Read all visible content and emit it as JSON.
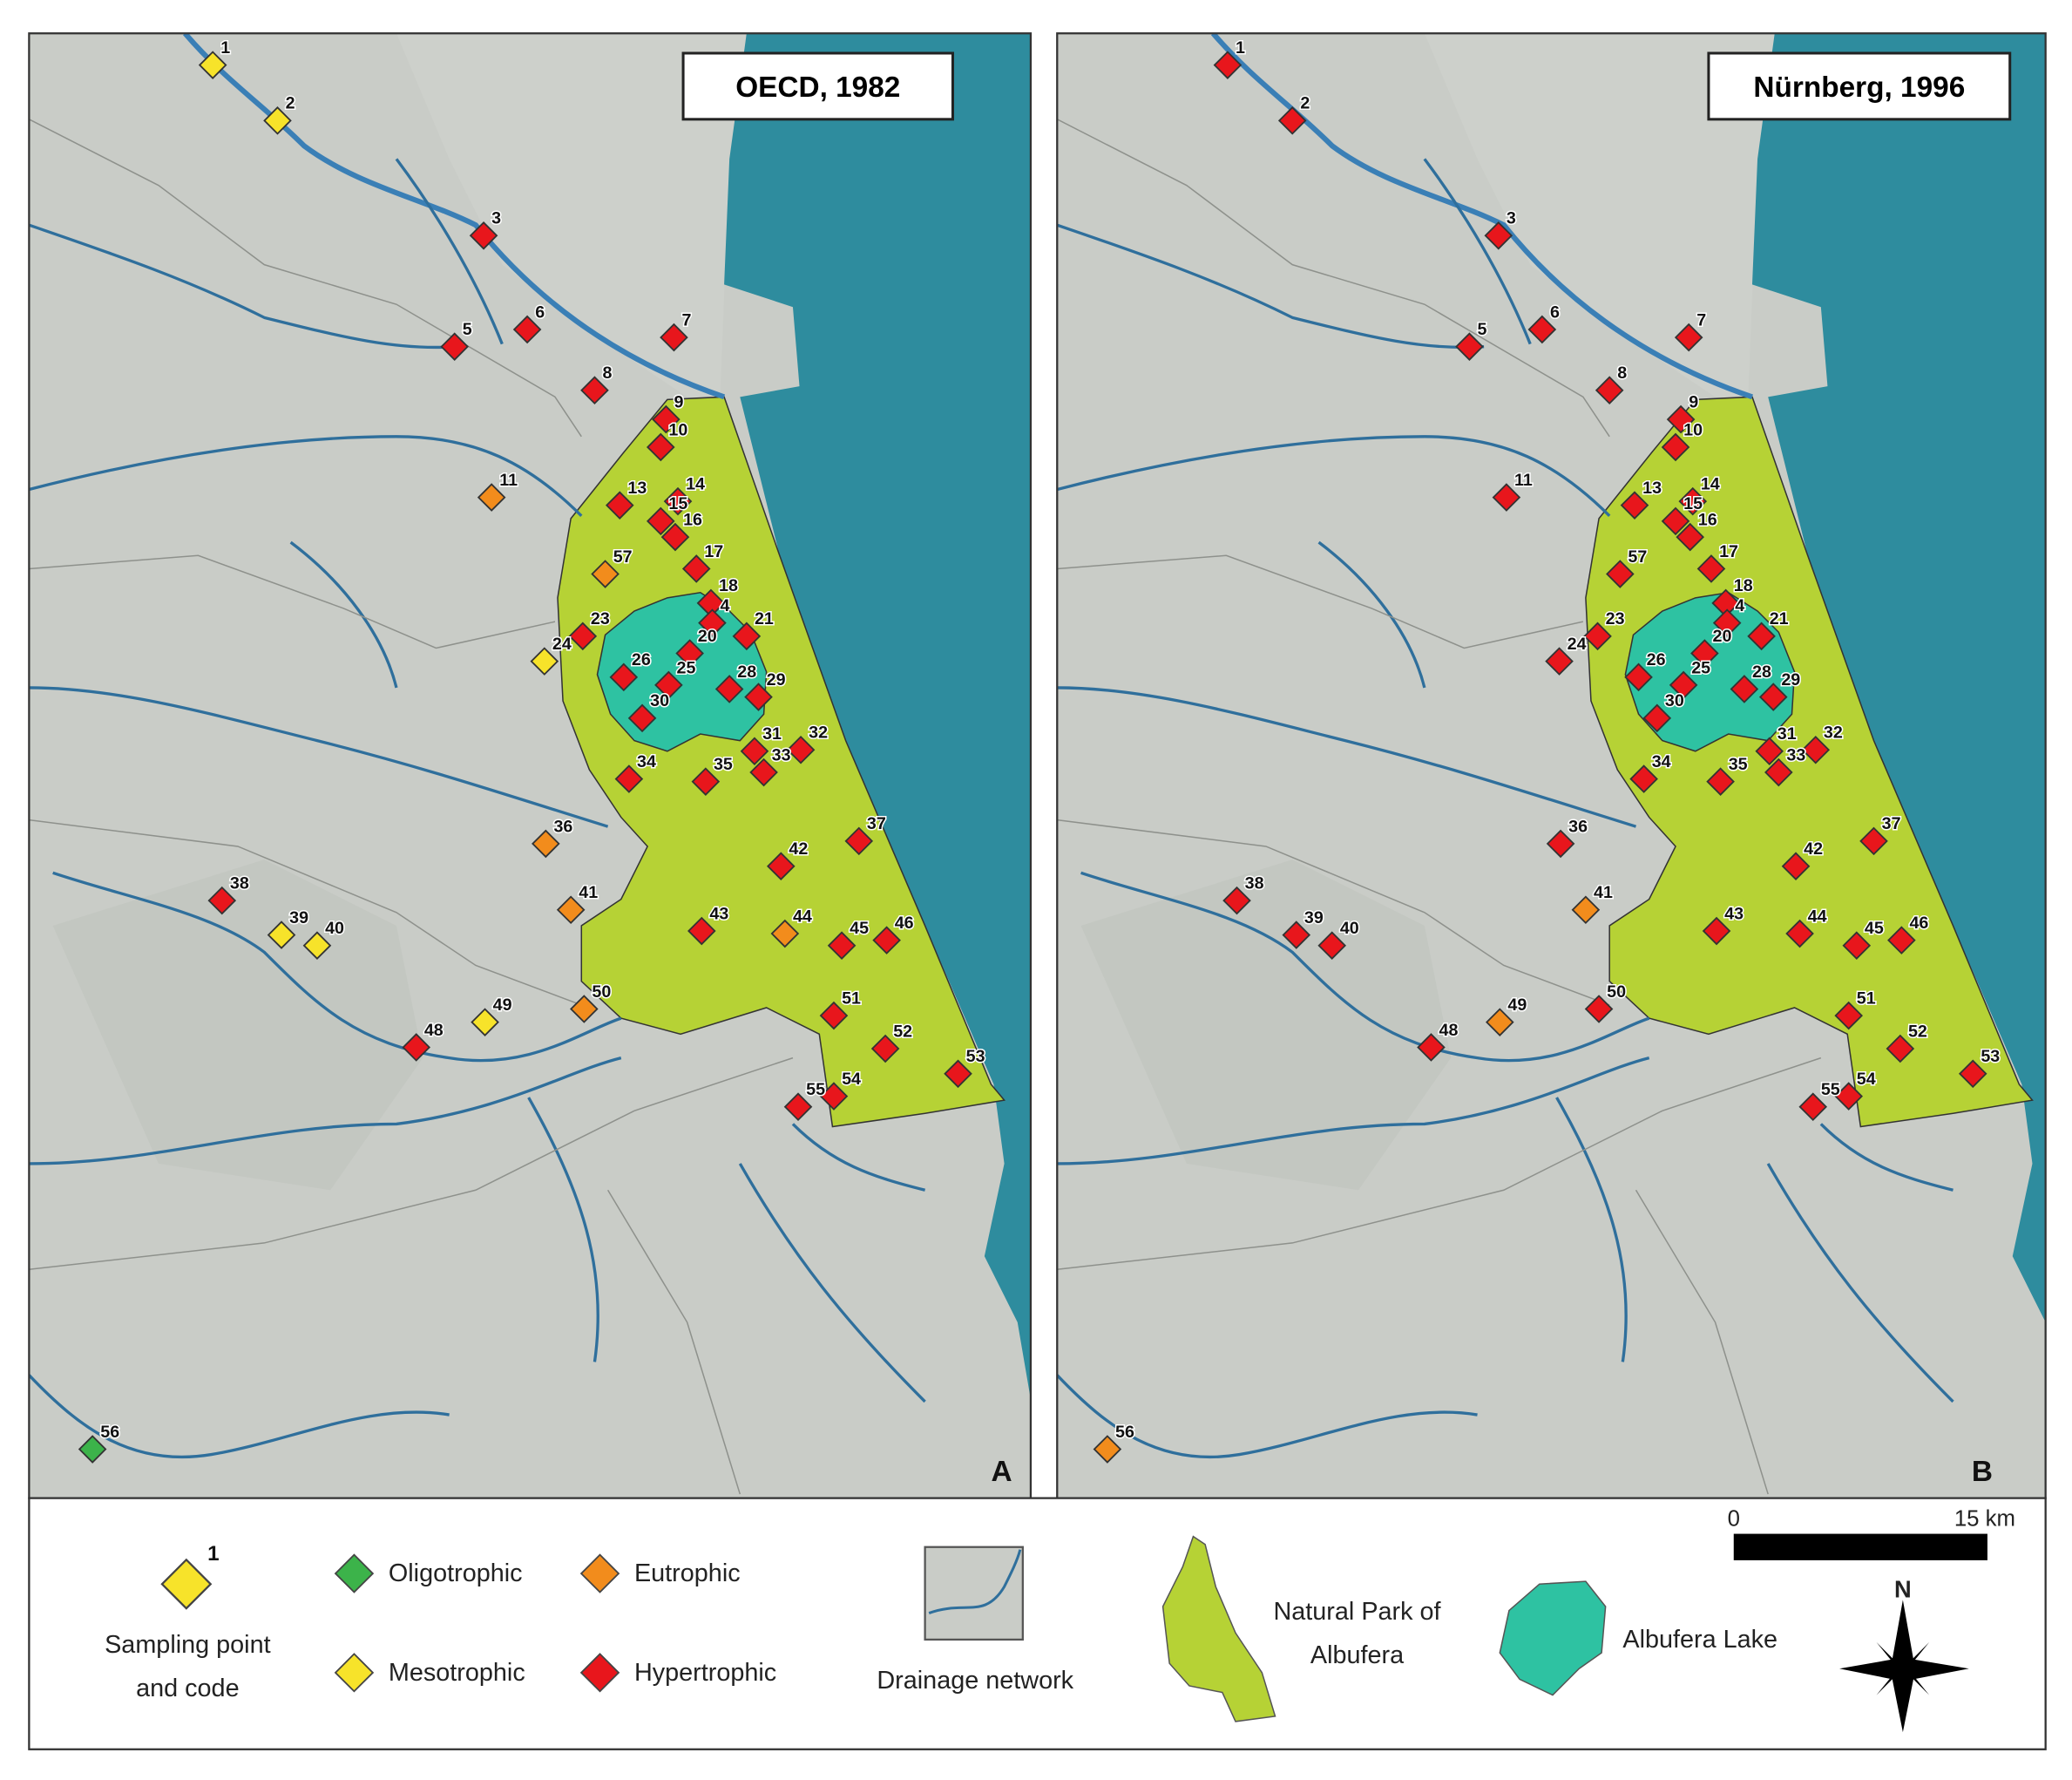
{
  "panels": [
    {
      "title": "OECD, 1982",
      "letter": "A",
      "status": [
        "Mesotrophic",
        "Mesotrophic",
        "Hypertrophic",
        "Hypertrophic",
        "Hypertrophic",
        "Hypertrophic",
        "Hypertrophic",
        "Hypertrophic",
        "Hypertrophic",
        "Eutrophic",
        "Hypertrophic",
        "Hypertrophic",
        "Hypertrophic",
        "Hypertrophic",
        "Hypertrophic",
        "Hypertrophic",
        "Hypertrophic",
        "Hypertrophic",
        "Hypertrophic",
        "Hypertrophic",
        "Mesotrophic",
        "Hypertrophic",
        "Hypertrophic",
        "Hypertrophic",
        "Hypertrophic",
        "Hypertrophic",
        "Hypertrophic",
        "Hypertrophic",
        "Hypertrophic",
        "Hypertrophic",
        "Hypertrophic",
        "Eutrophic",
        "Hypertrophic",
        "Hypertrophic",
        "Mesotrophic",
        "Mesotrophic",
        "Eutrophic",
        "Hypertrophic",
        "Hypertrophic",
        "Eutrophic",
        "Hypertrophic",
        "Hypertrophic",
        "Hypertrophic",
        "Mesotrophic",
        "Eutrophic",
        "Hypertrophic",
        "Hypertrophic",
        "Hypertrophic",
        "Hypertrophic",
        "Hypertrophic",
        "Oligotrophic",
        "Eutrophic"
      ]
    },
    {
      "title": "Nürnberg, 1996",
      "letter": "B",
      "status": [
        "Hypertrophic",
        "Hypertrophic",
        "Hypertrophic",
        "Hypertrophic",
        "Hypertrophic",
        "Hypertrophic",
        "Hypertrophic",
        "Hypertrophic",
        "Hypertrophic",
        "Hypertrophic",
        "Hypertrophic",
        "Hypertrophic",
        "Hypertrophic",
        "Hypertrophic",
        "Hypertrophic",
        "Hypertrophic",
        "Hypertrophic",
        "Hypertrophic",
        "Hypertrophic",
        "Hypertrophic",
        "Hypertrophic",
        "Hypertrophic",
        "Hypertrophic",
        "Hypertrophic",
        "Hypertrophic",
        "Hypertrophic",
        "Hypertrophic",
        "Hypertrophic",
        "Hypertrophic",
        "Hypertrophic",
        "Hypertrophic",
        "Hypertrophic",
        "Hypertrophic",
        "Hypertrophic",
        "Hypertrophic",
        "Hypertrophic",
        "Eutrophic",
        "Hypertrophic",
        "Hypertrophic",
        "Hypertrophic",
        "Hypertrophic",
        "Hypertrophic",
        "Hypertrophic",
        "Eutrophic",
        "Hypertrophic",
        "Hypertrophic",
        "Hypertrophic",
        "Hypertrophic",
        "Hypertrophic",
        "Hypertrophic",
        "Eutrophic",
        "Hypertrophic"
      ]
    }
  ],
  "points": [
    "1",
    "2",
    "3",
    "5",
    "6",
    "7",
    "8",
    "9",
    "10",
    "11",
    "13",
    "14",
    "15",
    "16",
    "17",
    "18",
    "4",
    "20",
    "21",
    "23",
    "24",
    "25",
    "26",
    "28",
    "29",
    "30",
    "31",
    "32",
    "33",
    "34",
    "35",
    "36",
    "37",
    "38",
    "39",
    "40",
    "41",
    "42",
    "43",
    "44",
    "45",
    "46",
    "48",
    "49",
    "50",
    "51",
    "52",
    "53",
    "54",
    "55",
    "56",
    "57"
  ],
  "legend": {
    "sampling_code": "1",
    "sampling_label": [
      "Sampling point",
      "and code"
    ],
    "classes": [
      {
        "name": "Oligotrophic",
        "color": "#3cb34a"
      },
      {
        "name": "Eutrophic",
        "color": "#f28c1c"
      },
      {
        "name": "Mesotrophic",
        "color": "#f7e32a"
      },
      {
        "name": "Hypertrophic",
        "color": "#e8161c"
      }
    ],
    "drainage": "Drainage network",
    "park": [
      "Natural Park of",
      "Albufera"
    ],
    "lake": "Albufera Lake",
    "scale_start": "0",
    "scale_end": "15 km",
    "north": "N"
  }
}
